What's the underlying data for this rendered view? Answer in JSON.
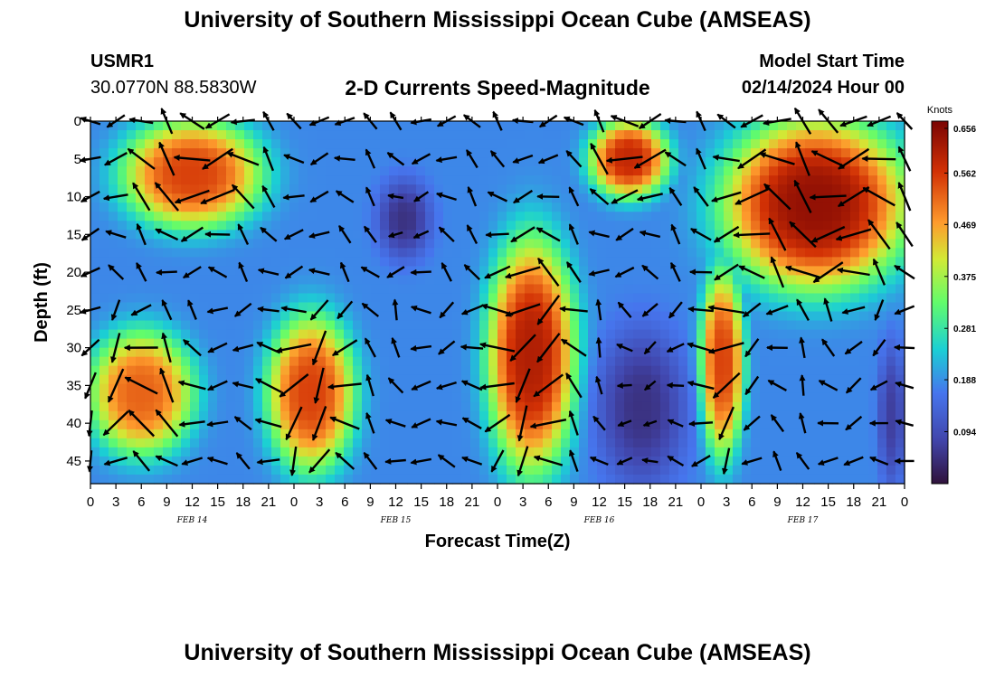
{
  "header": {
    "title": "University of Southern Mississippi Ocean Cube (AMSEAS)",
    "station_id": "USMR1",
    "station_coords": "30.0770N  88.5830W",
    "subtitle": "2-D Currents Speed-Magnitude",
    "start_label": "Model Start Time",
    "start_value": "02/14/2024 Hour 00"
  },
  "footer": {
    "title": "University of Southern Mississippi Ocean Cube (AMSEAS)"
  },
  "chart_data": {
    "type": "heatmap",
    "title": "2-D Currents Speed-Magnitude",
    "xlabel": "Forecast Time(Z)",
    "ylabel": "Depth (ft)",
    "x_ticks": [
      "0",
      "3",
      "6",
      "9",
      "12",
      "15",
      "18",
      "21",
      "0",
      "3",
      "6",
      "9",
      "12",
      "15",
      "18",
      "21",
      "0",
      "3",
      "6",
      "9",
      "12",
      "15",
      "18",
      "21",
      "0",
      "3",
      "6",
      "9",
      "12",
      "15",
      "18",
      "21",
      "0"
    ],
    "x_range_hours": [
      0,
      96
    ],
    "y_ticks": [
      "0",
      "5",
      "10",
      "15",
      "20",
      "25",
      "30",
      "35",
      "40",
      "45"
    ],
    "y_range_ft": [
      0,
      48
    ],
    "date_labels": [
      {
        "label": "FEB 14",
        "hour": 12
      },
      {
        "label": "FEB 15",
        "hour": 36
      },
      {
        "label": "FEB 16",
        "hour": 60
      },
      {
        "label": "FEB 17",
        "hour": 84
      }
    ],
    "colorbar": {
      "title": "Knots",
      "range": [
        0,
        0.656
      ],
      "ticks": [
        "0.656",
        "0.562",
        "0.469",
        "0.375",
        "0.281",
        "0.188",
        "0.094"
      ]
    },
    "high_speed_regions": [
      {
        "hours": [
          4,
          20
        ],
        "depth_ft": [
          0,
          14
        ],
        "peak_knots": 0.55
      },
      {
        "hours": [
          0,
          12
        ],
        "depth_ft": [
          28,
          44
        ],
        "peak_knots": 0.52
      },
      {
        "hours": [
          21,
          31
        ],
        "depth_ft": [
          26,
          46
        ],
        "peak_knots": 0.55
      },
      {
        "hours": [
          47,
          57
        ],
        "depth_ft": [
          16,
          46
        ],
        "peak_knots": 0.6
      },
      {
        "hours": [
          59,
          68
        ],
        "depth_ft": [
          0,
          10
        ],
        "peak_knots": 0.58
      },
      {
        "hours": [
          72,
          77
        ],
        "depth_ft": [
          20,
          44
        ],
        "peak_knots": 0.55
      },
      {
        "hours": [
          75,
          96
        ],
        "depth_ft": [
          0,
          22
        ],
        "peak_knots": 0.63
      }
    ],
    "low_speed_regions": [
      {
        "hours": [
          34,
          40
        ],
        "depth_ft": [
          8,
          18
        ],
        "min_knots": 0.05
      },
      {
        "hours": [
          60,
          70
        ],
        "depth_ft": [
          28,
          48
        ],
        "min_knots": 0.05
      },
      {
        "hours": [
          93,
          96
        ],
        "depth_ft": [
          30,
          48
        ],
        "min_knots": 0.07
      }
    ]
  },
  "colors": {
    "text": "#000000",
    "axis": "#000000"
  }
}
